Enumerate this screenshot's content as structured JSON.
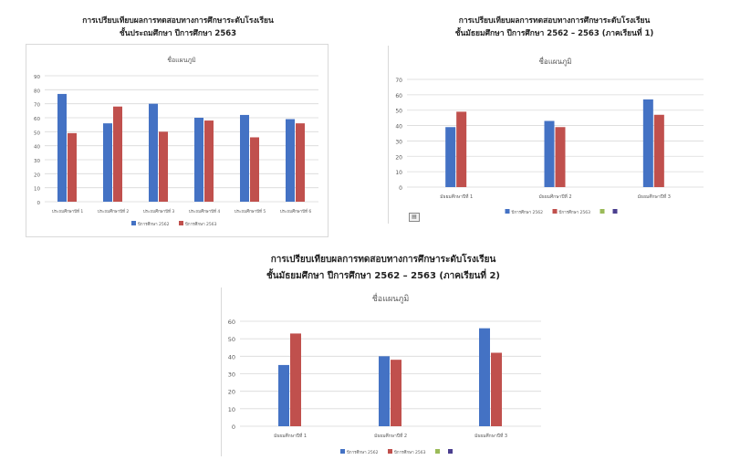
{
  "chart_data": [
    {
      "type": "bar",
      "heading": [
        "การเปรียบเทียบผลการทดสอบทางการศึกษาระดับโรงเรียน",
        "ชั้นประถมศึกษา ปีการศึกษา 2563"
      ],
      "title": "ชื่อแผนภูมิ",
      "categories": [
        "ประถมศึกษาปีที่ 1",
        "ประถมศึกษาปีที่ 2",
        "ประถมศึกษาปีที่ 3",
        "ประถมศึกษาปีที่ 4",
        "ประถมศึกษาปีที่ 5",
        "ประถมศึกษาปีที่ 6"
      ],
      "series": [
        {
          "name": "ปีการศึกษา 2562",
          "values": [
            77,
            56,
            70,
            60,
            62,
            59
          ]
        },
        {
          "name": "ปีการศึกษา 2563",
          "values": [
            49,
            68,
            50,
            58,
            46,
            56
          ]
        }
      ],
      "ylim": [
        0,
        90
      ],
      "yticks": [
        0,
        10,
        20,
        30,
        40,
        50,
        60,
        70,
        80,
        90
      ],
      "grid": true,
      "legend": "bottom"
    },
    {
      "type": "bar",
      "heading": [
        "การเปรียบเทียบผลการทดสอบทางการศึกษาระดับโรงเรียน",
        "ชั้นมัธยมศึกษา ปีการศึกษา 2562 – 2563 (ภาคเรียนที่ 1)"
      ],
      "title": "ชื่อแผนภูมิ",
      "categories": [
        "มัธยมศึกษาปีที่ 1",
        "มัธยมศึกษาปีที่ 2",
        "มัธยมศึกษาปีที่ 3"
      ],
      "series": [
        {
          "name": "ปีการศึกษา 2562",
          "values": [
            39,
            43,
            57
          ]
        },
        {
          "name": "ปีการศึกษา 2563",
          "values": [
            49,
            39,
            47
          ]
        }
      ],
      "ylim": [
        0,
        70
      ],
      "yticks": [
        0,
        10,
        20,
        30,
        40,
        50,
        60,
        70
      ],
      "grid": true,
      "legend": "bottom"
    },
    {
      "type": "bar",
      "heading": [
        "การเปรียบเทียบผลการทดสอบทางการศึกษาระดับโรงเรียน",
        "ชั้นมัธยมศึกษา ปีการศึกษา 2562 – 2563 (ภาคเรียนที่ 2)"
      ],
      "title": "ชื่อแผนภูมิ",
      "categories": [
        "มัธยมศึกษาปีที่ 1",
        "มัธยมศึกษาปีที่ 2",
        "มัธยมศึกษาปีที่ 3"
      ],
      "series": [
        {
          "name": "ปีการศึกษา 2562",
          "values": [
            35,
            40,
            56
          ]
        },
        {
          "name": "ปีการศึกษา 2563",
          "values": [
            53,
            38,
            42
          ]
        }
      ],
      "ylim": [
        0,
        60
      ],
      "yticks": [
        0,
        10,
        20,
        30,
        40,
        50,
        60
      ],
      "grid": true,
      "legend": "bottom"
    }
  ],
  "colors": {
    "series_a": "#4472c4",
    "series_b": "#c0504d",
    "extra_a": "#9bbb59",
    "extra_b": "#4b3f8f",
    "grid": "#d9d9d9",
    "axis_text": "#595959"
  },
  "icons": {
    "paste_options": "paste-options-icon"
  }
}
